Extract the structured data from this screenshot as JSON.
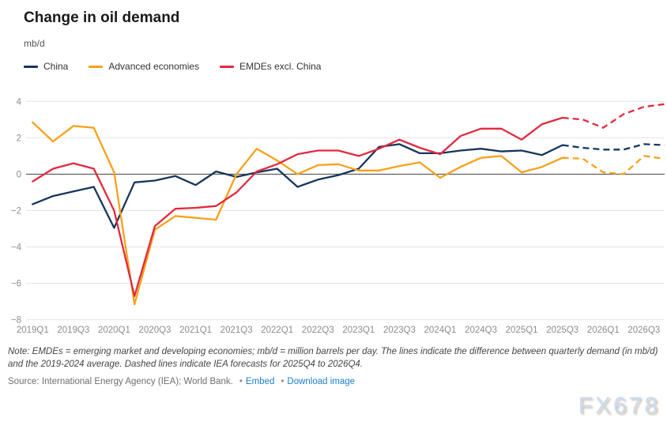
{
  "header": {
    "title": "Change in oil demand",
    "unit": "mb/d"
  },
  "chart_data": {
    "type": "line",
    "x": [
      "2019Q1",
      "2019Q2",
      "2019Q3",
      "2019Q4",
      "2020Q1",
      "2020Q2",
      "2020Q3",
      "2020Q4",
      "2021Q1",
      "2021Q2",
      "2021Q3",
      "2021Q4",
      "2022Q1",
      "2022Q2",
      "2022Q3",
      "2022Q4",
      "2023Q1",
      "2023Q2",
      "2023Q3",
      "2023Q4",
      "2024Q1",
      "2024Q2",
      "2024Q3",
      "2024Q4",
      "2025Q1",
      "2025Q2",
      "2025Q3",
      "2025Q4",
      "2026Q1",
      "2026Q2",
      "2026Q3",
      "2026Q4"
    ],
    "x_tick_labels": [
      "2019Q1",
      "2019Q3",
      "2020Q1",
      "2020Q3",
      "2021Q1",
      "2021Q3",
      "2022Q1",
      "2022Q3",
      "2023Q1",
      "2023Q3",
      "2024Q1",
      "2024Q3",
      "2025Q1",
      "2025Q3",
      "2026Q1",
      "2026Q3"
    ],
    "series": [
      {
        "name": "China",
        "color": "#16365c",
        "values": [
          -1.65,
          -1.2,
          -0.95,
          -0.7,
          -2.95,
          -0.45,
          -0.35,
          -0.1,
          -0.6,
          0.15,
          -0.15,
          0.1,
          0.3,
          -0.7,
          -0.3,
          -0.05,
          0.3,
          1.5,
          1.65,
          1.15,
          1.15,
          1.3,
          1.4,
          1.25,
          1.3,
          1.05,
          1.6,
          1.45,
          1.35,
          1.35,
          1.65,
          1.6
        ]
      },
      {
        "name": "Advanced economies",
        "color": "#f7a11a",
        "values": [
          2.85,
          1.8,
          2.65,
          2.55,
          0.1,
          -7.15,
          -3.05,
          -2.3,
          -2.4,
          -2.5,
          0.0,
          1.4,
          0.75,
          0.0,
          0.5,
          0.55,
          0.2,
          0.2,
          0.45,
          0.65,
          -0.2,
          0.4,
          0.9,
          1.0,
          0.1,
          0.4,
          0.9,
          0.85,
          0.1,
          0.0,
          1.0,
          0.85
        ]
      },
      {
        "name": "EMDEs excl. China",
        "color": "#e22a3f",
        "values": [
          -0.4,
          0.3,
          0.6,
          0.3,
          -2.0,
          -6.7,
          -2.85,
          -1.9,
          -1.85,
          -1.75,
          -1.0,
          0.15,
          0.55,
          1.1,
          1.3,
          1.3,
          1.0,
          1.4,
          1.9,
          1.45,
          1.1,
          2.1,
          2.5,
          2.5,
          1.9,
          2.75,
          3.1,
          3.0,
          2.55,
          3.3,
          3.7,
          3.85
        ]
      }
    ],
    "forecast_start_index": 26,
    "yticks": [
      4,
      2,
      0,
      -2,
      -4,
      -6,
      -8
    ],
    "ylim": [
      -8,
      4
    ],
    "grid": true,
    "legend_position": "top-left",
    "colors": {
      "grid": "#e4e4e4",
      "zero_line": "#404040",
      "tick_text": "#8c8c8c"
    }
  },
  "note": {
    "text": "Note: EMDEs = emerging market and developing economies; mb/d = million barrels per day. The lines indicate the difference between quarterly demand (in mb/d) and the 2019-2024 average. Dashed lines indicate IEA forecasts for 2025Q4 to 2026Q4."
  },
  "source": {
    "text": "Source: International Energy Agency (IEA); World Bank.",
    "bullet": "•",
    "links": [
      "Embed",
      "Download image"
    ]
  },
  "watermark": "FX678"
}
